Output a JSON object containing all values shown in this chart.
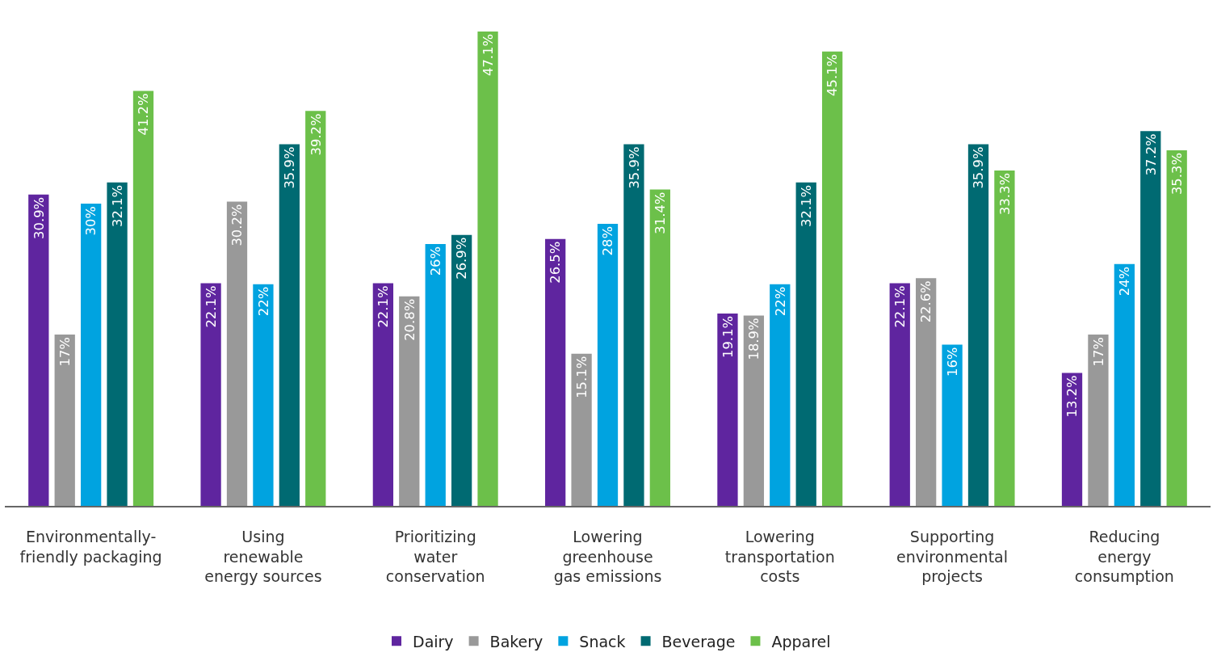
{
  "chart_data": {
    "type": "bar",
    "categories": [
      "Environmentally-\nfriendly packaging",
      "Using\nrenewable\nenergy sources",
      "Prioritizing\nwater\nconservation",
      "Lowering\ngreenhouse\ngas emissions",
      "Lowering\ntransportation\ncosts",
      "Supporting\nenvironmental\nprojects",
      "Reducing\nenergy\nconsumption"
    ],
    "series": [
      {
        "name": "Dairy",
        "color": "#5f259f",
        "values": [
          30.9,
          22.1,
          22.1,
          26.5,
          19.1,
          22.1,
          13.2
        ],
        "value_labels": [
          "30.9%",
          "22.1%",
          "22.1%",
          "26.5%",
          "19.1%",
          "22.1%",
          "13.2%"
        ]
      },
      {
        "name": "Bakery",
        "color": "#999999",
        "values": [
          17,
          30.2,
          20.8,
          15.1,
          18.9,
          22.6,
          17
        ],
        "value_labels": [
          "17%",
          "30.2%",
          "20.8%",
          "15.1%",
          "18.9%",
          "22.6%",
          "17%"
        ]
      },
      {
        "name": "Snack",
        "color": "#00a3e0",
        "values": [
          30,
          22,
          26,
          28,
          22,
          16,
          24
        ],
        "value_labels": [
          "30%",
          "22%",
          "26%",
          "28%",
          "22%",
          "16%",
          "24%"
        ]
      },
      {
        "name": "Beverage",
        "color": "#006a72",
        "values": [
          32.1,
          35.9,
          26.9,
          35.9,
          32.1,
          35.9,
          37.2
        ],
        "value_labels": [
          "32.1%",
          "35.9%",
          "26.9%",
          "35.9%",
          "32.1%",
          "35.9%",
          "37.2%"
        ]
      },
      {
        "name": "Apparel",
        "color": "#6cc04a",
        "values": [
          41.2,
          39.2,
          47.1,
          31.4,
          45.1,
          33.3,
          35.3
        ],
        "value_labels": [
          "41.2%",
          "39.2%",
          "47.1%",
          "31.4%",
          "45.1%",
          "33.3%",
          "35.3%"
        ]
      }
    ],
    "legend": "bottom",
    "tick_labels": "x"
  }
}
